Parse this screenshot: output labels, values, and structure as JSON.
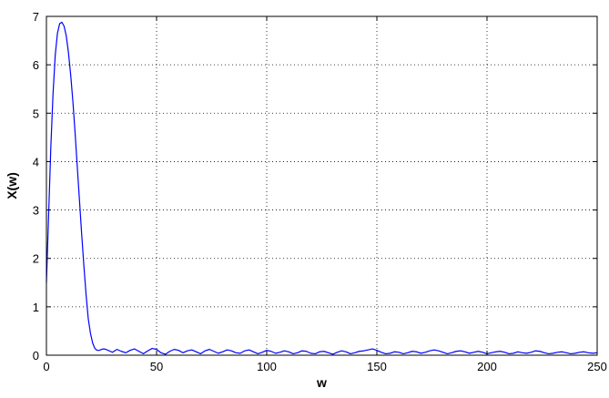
{
  "chart_data": {
    "type": "line",
    "title": "",
    "xlabel": "w",
    "ylabel": "X(w)",
    "xlim": [
      0,
      250
    ],
    "ylim": [
      0,
      7
    ],
    "xticks": [
      0,
      50,
      100,
      150,
      200,
      250
    ],
    "yticks": [
      0,
      1,
      2,
      3,
      4,
      5,
      6,
      7
    ],
    "xtick_labels": [
      "0",
      "50",
      "100",
      "150",
      "200",
      "250"
    ],
    "ytick_labels": [
      "0",
      "1",
      "2",
      "3",
      "4",
      "5",
      "6",
      "7"
    ],
    "grid": true,
    "grid_style": "dotted",
    "series": [
      {
        "color": "#0000ff",
        "x": [
          0,
          1,
          2,
          3,
          4,
          5,
          6,
          7,
          8,
          9,
          10,
          11,
          12,
          13,
          14,
          15,
          16,
          17,
          18,
          19,
          20,
          21,
          22,
          23,
          24,
          25,
          26,
          27,
          28,
          29,
          30,
          32,
          34,
          36,
          38,
          40,
          42,
          44,
          46,
          48,
          50,
          52,
          54,
          56,
          58,
          60,
          62,
          64,
          66,
          68,
          70,
          72,
          74,
          76,
          78,
          80,
          82,
          84,
          86,
          88,
          90,
          92,
          94,
          96,
          98,
          100,
          102,
          104,
          106,
          108,
          110,
          112,
          114,
          116,
          118,
          120,
          122,
          124,
          126,
          128,
          130,
          132,
          134,
          136,
          138,
          140,
          142,
          144,
          146,
          148,
          150,
          152,
          154,
          156,
          158,
          160,
          162,
          164,
          166,
          168,
          170,
          172,
          174,
          176,
          178,
          180,
          182,
          184,
          186,
          188,
          190,
          192,
          194,
          196,
          198,
          200,
          202,
          204,
          206,
          208,
          210,
          212,
          214,
          216,
          218,
          220,
          222,
          224,
          226,
          228,
          230,
          232,
          234,
          236,
          238,
          240,
          242,
          244,
          246,
          248,
          250
        ],
        "y": [
          1.5,
          2.9,
          4.3,
          5.4,
          6.2,
          6.65,
          6.85,
          6.88,
          6.8,
          6.6,
          6.25,
          5.8,
          5.25,
          4.6,
          3.9,
          3.2,
          2.5,
          1.85,
          1.25,
          0.75,
          0.45,
          0.25,
          0.14,
          0.1,
          0.1,
          0.12,
          0.13,
          0.12,
          0.1,
          0.08,
          0.06,
          0.12,
          0.08,
          0.05,
          0.1,
          0.13,
          0.08,
          0.03,
          0.09,
          0.14,
          0.12,
          0.05,
          0.02,
          0.08,
          0.12,
          0.1,
          0.05,
          0.09,
          0.11,
          0.07,
          0.03,
          0.09,
          0.12,
          0.08,
          0.04,
          0.07,
          0.11,
          0.09,
          0.05,
          0.04,
          0.09,
          0.11,
          0.07,
          0.03,
          0.06,
          0.1,
          0.08,
          0.04,
          0.06,
          0.09,
          0.07,
          0.03,
          0.05,
          0.09,
          0.08,
          0.04,
          0.03,
          0.07,
          0.08,
          0.05,
          0.02,
          0.06,
          0.09,
          0.07,
          0.03,
          0.05,
          0.08,
          0.09,
          0.11,
          0.13,
          0.1,
          0.06,
          0.03,
          0.04,
          0.07,
          0.06,
          0.03,
          0.05,
          0.08,
          0.07,
          0.04,
          0.06,
          0.09,
          0.11,
          0.09,
          0.06,
          0.03,
          0.05,
          0.08,
          0.09,
          0.07,
          0.04,
          0.06,
          0.08,
          0.06,
          0.03,
          0.05,
          0.07,
          0.08,
          0.06,
          0.03,
          0.04,
          0.07,
          0.05,
          0.04,
          0.06,
          0.09,
          0.08,
          0.05,
          0.03,
          0.04,
          0.06,
          0.07,
          0.05,
          0.03,
          0.04,
          0.06,
          0.07,
          0.05,
          0.04,
          0.05
        ]
      }
    ]
  }
}
